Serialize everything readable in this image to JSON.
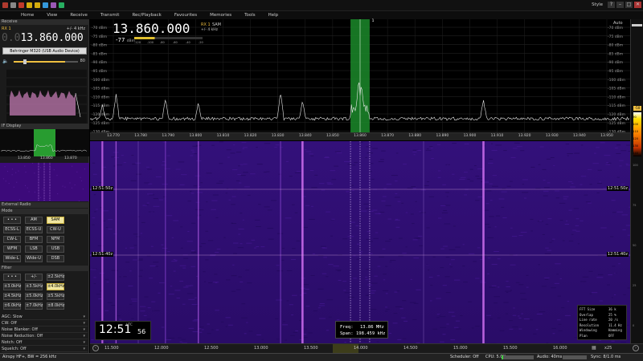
{
  "titlebar": {
    "style_label": "Style",
    "window_controls": [
      "?",
      "–",
      "□",
      "✕"
    ],
    "quick_icon_colors": [
      "#b03a2e",
      "#888888",
      "#c0392b",
      "#d4ac0d",
      "#d4ac0d",
      "#3498db",
      "#9b59b6",
      "#27ae60"
    ]
  },
  "menu": [
    "Home",
    "View",
    "Receive",
    "Transmit",
    "Rec/Playback",
    "Favourites",
    "Memories",
    "Tools",
    "Help"
  ],
  "left_panel": {
    "receive_header": "Receive",
    "rx_label": "RX 1",
    "rx_bw": "+/- 4 kHz",
    "freq_dim": "0.0",
    "freq_main": "13.860.000",
    "device": "Behringer M320 (USB Audio Device)",
    "volume_value": "80",
    "if_display_header": "IF Display",
    "if_ticks": [
      "13.850",
      "13.860",
      "13.870"
    ],
    "external_radio_header": "External Radio",
    "mode_header": "Mode",
    "mode_buttons": [
      [
        "• • •",
        "AM",
        "SAM"
      ],
      [
        "ECSS-L",
        "ECSS-U",
        "CW-U"
      ],
      [
        "CW-L",
        "BFM",
        "NFM"
      ],
      [
        "WFM",
        "LSB",
        "USB"
      ],
      [
        "Wide-L",
        "Wide-U",
        "DSB"
      ]
    ],
    "active_mode": "SAM",
    "filter_header": "Filter",
    "filter_buttons": [
      [
        "• • •",
        "+/-",
        "±2.5kHz"
      ],
      [
        "±3.0kHz",
        "±3.5kHz",
        "±4.0kHz"
      ],
      [
        "±4.5kHz",
        "±5.0kHz",
        "±5.5kHz"
      ],
      [
        "±6.0kHz",
        "±7.0kHz",
        "±8.0kHz"
      ]
    ],
    "active_filter": "±4.0kHz",
    "options": [
      "AGC: Slow",
      "CW: Off",
      "Noise Blanker: Off",
      "Noise Reduction: Off",
      "Notch: Off",
      "Squelch: Off"
    ]
  },
  "spectrum": {
    "freq_display": "13.860.000",
    "rx_label": "RX 1",
    "rx_mode": "SAM",
    "rx_bw": "+/- 4 kHz",
    "signal_level": "-77",
    "signal_unit": "dBm",
    "meter_ticks": [
      "-120",
      "-100",
      "-80",
      "-60",
      "-40",
      "-20"
    ],
    "db_labels": [
      "-70 dBm",
      "-75 dBm",
      "-80 dBm",
      "-85 dBm",
      "-90 dBm",
      "-95 dBm",
      "-100 dBm",
      "-105 dBm",
      "-110 dBm",
      "-115 dBm",
      "-120 dBm",
      "-125 dBm",
      "-130 dBm"
    ],
    "auto_label": "Auto",
    "filter_marker": "1",
    "freq_axis": [
      "13.770",
      "13.780",
      "13.790",
      "13.800",
      "13.810",
      "13.820",
      "13.830",
      "13.840",
      "13.850",
      "13.860",
      "13.870",
      "13.880",
      "13.890",
      "13.900",
      "13.910",
      "13.920",
      "13.930",
      "13.940",
      "13.950"
    ],
    "level_marker": "-50",
    "peak_freqs": [
      13.766,
      13.771,
      13.789,
      13.801,
      13.831,
      13.839,
      13.857,
      13.861,
      13.905
    ]
  },
  "colorbar": {
    "labels": [
      "-90",
      "-100",
      "-110",
      "-120",
      "-130",
      "-140"
    ],
    "tick_labels": [
      "100",
      "75",
      "50",
      "25",
      "0"
    ]
  },
  "waterfall": {
    "timestamps": [
      "12:51:50z",
      "12:51:40z"
    ],
    "clock_main": "12:51",
    "clock_sec": "56",
    "clock_utc": "UTC",
    "freq_label": "Freq:",
    "freq_value": "13.86 MHz",
    "span_label": "Span:",
    "span_value": "198.459 kHz",
    "stats": [
      [
        "FFT Size",
        "36 k"
      ],
      [
        "Overlap",
        "25 %"
      ],
      [
        "Line rate",
        "20 /s"
      ],
      [
        "Resolution",
        "11.4 Hz"
      ],
      [
        "Windowing",
        "Hamming"
      ],
      [
        "Plan",
        "OFF"
      ]
    ],
    "line_freqs": [
      13.766,
      13.771,
      13.801,
      13.839,
      13.905
    ]
  },
  "bottom_axis": {
    "labels": [
      "11.500",
      "12.000",
      "12.500",
      "13.000",
      "13.500",
      "14.000",
      "14.500",
      "15.000",
      "15.500",
      "16.000"
    ],
    "zoom": "x25"
  },
  "statusbar": {
    "left": "Airspy HF+, BW = 256 kHz",
    "scheduler": "Scheduler: Off",
    "cpu": "CPU: 5.0%",
    "audio": "Audio: 40ms",
    "sync": "Sync: 8/1.0 ms"
  }
}
